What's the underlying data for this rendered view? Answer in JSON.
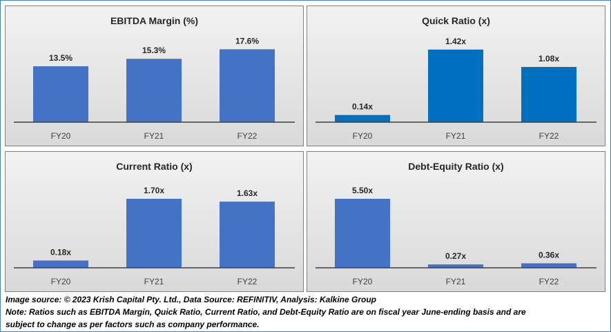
{
  "chart_data": [
    {
      "type": "bar",
      "title": "EBITDA Margin (%)",
      "categories": [
        "FY20",
        "FY21",
        "FY22"
      ],
      "values": [
        13.5,
        15.3,
        17.6
      ],
      "labels": [
        "13.5%",
        "15.3%",
        "17.6%"
      ],
      "ylim": [
        0,
        20
      ],
      "color": "#4472c4"
    },
    {
      "type": "bar",
      "title": "Quick Ratio (x)",
      "categories": [
        "FY20",
        "FY21",
        "FY22"
      ],
      "values": [
        0.14,
        1.42,
        1.08
      ],
      "labels": [
        "0.14x",
        "1.42x",
        "1.08x"
      ],
      "ylim": [
        0,
        1.62
      ],
      "color": "#0070c0"
    },
    {
      "type": "bar",
      "title": "Current Ratio (x)",
      "categories": [
        "FY20",
        "FY21",
        "FY22"
      ],
      "values": [
        0.18,
        1.7,
        1.63
      ],
      "labels": [
        "0.18x",
        "1.70x",
        "1.63x"
      ],
      "ylim": [
        0,
        2.04
      ],
      "color": "#4472c4"
    },
    {
      "type": "bar",
      "title": "Debt-Equity Ratio (x)",
      "categories": [
        "FY20",
        "FY21",
        "FY22"
      ],
      "values": [
        5.5,
        0.27,
        0.36
      ],
      "labels": [
        "5.50x",
        "0.27x",
        "0.36x"
      ],
      "ylim": [
        0,
        6.6
      ],
      "color": "#4472c4"
    }
  ],
  "notes": {
    "source": "Image source: © 2023 Krish Capital Pty. Ltd., Data Source: REFINITIV, Analysis: Kalkine Group",
    "line1": "Note: Ratios such as EBITDA Margin, Quick Ratio, Current Ratio, and Debt-Equity Ratio are on fiscal year June-ending basis and are",
    "line2": "subject to change as per factors such as company performance."
  }
}
